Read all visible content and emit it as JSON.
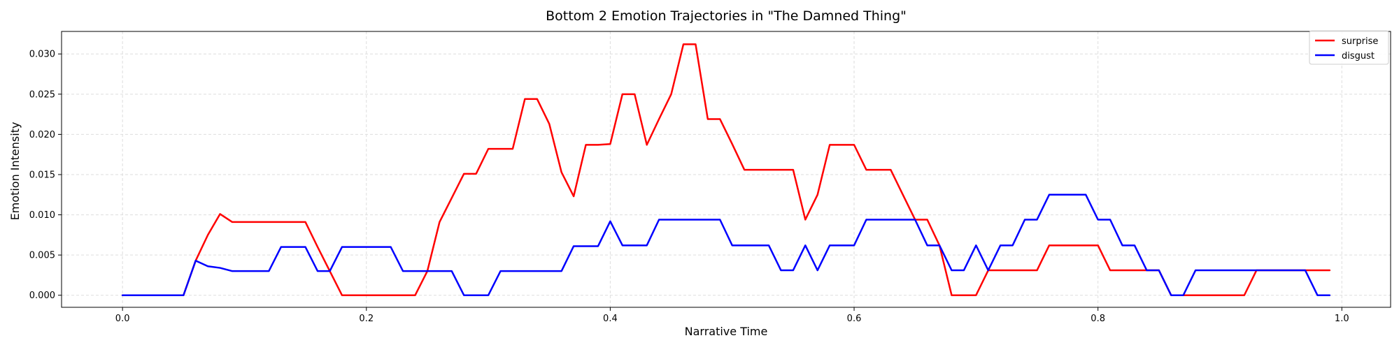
{
  "chart_data": {
    "type": "line",
    "title": "Bottom 2 Emotion Trajectories in \"The Damned Thing\"",
    "xlabel": "Narrative Time",
    "ylabel": "Emotion Intensity",
    "xlim": [
      -0.05,
      1.04
    ],
    "ylim": [
      -0.0015,
      0.0328
    ],
    "xticks": [
      0.0,
      0.2,
      0.4,
      0.6,
      0.8,
      1.0
    ],
    "xtick_labels": [
      "0.0",
      "0.2",
      "0.4",
      "0.6",
      "0.8",
      "1.0"
    ],
    "yticks": [
      0.0,
      0.005,
      0.01,
      0.015,
      0.02,
      0.025,
      0.03
    ],
    "ytick_labels": [
      "0.000",
      "0.005",
      "0.010",
      "0.015",
      "0.020",
      "0.025",
      "0.030"
    ],
    "grid": true,
    "legend_position": "top-right",
    "x": [
      0.0,
      0.01,
      0.02,
      0.03,
      0.04,
      0.05,
      0.06,
      0.07,
      0.08,
      0.09,
      0.1,
      0.11,
      0.12,
      0.13,
      0.14,
      0.15,
      0.16,
      0.17,
      0.18,
      0.19,
      0.2,
      0.21,
      0.22,
      0.23,
      0.24,
      0.25,
      0.26,
      0.27,
      0.28,
      0.29,
      0.3,
      0.31,
      0.32,
      0.33,
      0.34,
      0.35,
      0.36,
      0.37,
      0.38,
      0.39,
      0.4,
      0.41,
      0.42,
      0.43,
      0.44,
      0.45,
      0.46,
      0.47,
      0.48,
      0.49,
      0.5,
      0.51,
      0.52,
      0.53,
      0.54,
      0.55,
      0.56,
      0.57,
      0.58,
      0.59,
      0.6,
      0.61,
      0.62,
      0.63,
      0.64,
      0.65,
      0.66,
      0.67,
      0.68,
      0.69,
      0.7,
      0.71,
      0.72,
      0.73,
      0.74,
      0.75,
      0.76,
      0.77,
      0.78,
      0.79,
      0.8,
      0.81,
      0.82,
      0.83,
      0.84,
      0.85,
      0.86,
      0.87,
      0.88,
      0.89,
      0.9,
      0.91,
      0.92,
      0.93,
      0.94,
      0.95,
      0.96,
      0.97,
      0.98,
      0.99
    ],
    "series": [
      {
        "name": "surprise",
        "color": "#ff0000",
        "values": [
          0,
          0,
          0,
          0,
          0,
          0,
          0.0043,
          0.0075,
          0.0101,
          0.0091,
          0.0091,
          0.0091,
          0.0091,
          0.0091,
          0.0091,
          0.0091,
          0.006,
          0.003,
          0,
          0,
          0,
          0,
          0,
          0,
          0,
          0.003,
          0.0091,
          0.0121,
          0.0151,
          0.0151,
          0.0182,
          0.0182,
          0.0182,
          0.0244,
          0.0244,
          0.0213,
          0.0153,
          0.0123,
          0.0187,
          0.0187,
          0.0188,
          0.025,
          0.025,
          0.0187,
          0.0219,
          0.025,
          0.0312,
          0.0312,
          0.0219,
          0.0219,
          0.0188,
          0.0156,
          0.0156,
          0.0156,
          0.0156,
          0.0156,
          0.0094,
          0.0125,
          0.0187,
          0.0187,
          0.0187,
          0.0156,
          0.0156,
          0.0156,
          0.0125,
          0.0094,
          0.0094,
          0.0062,
          0,
          0,
          0,
          0.0031,
          0.0031,
          0.0031,
          0.0031,
          0.0031,
          0.0062,
          0.0062,
          0.0062,
          0.0062,
          0.0062,
          0.0031,
          0.0031,
          0.0031,
          0.0031,
          0.0031,
          0,
          0,
          0,
          0,
          0,
          0,
          0,
          0.0031,
          0.0031,
          0.0031,
          0.0031,
          0.0031,
          0.0031,
          0.0031
        ]
      },
      {
        "name": "disgust",
        "color": "#0000ff",
        "values": [
          0,
          0,
          0,
          0,
          0,
          0,
          0.0043,
          0.0036,
          0.0034,
          0.003,
          0.003,
          0.003,
          0.003,
          0.006,
          0.006,
          0.006,
          0.003,
          0.003,
          0.006,
          0.006,
          0.006,
          0.006,
          0.006,
          0.003,
          0.003,
          0.003,
          0.003,
          0.003,
          0,
          0,
          0,
          0.003,
          0.003,
          0.003,
          0.003,
          0.003,
          0.003,
          0.0061,
          0.0061,
          0.0061,
          0.0092,
          0.0062,
          0.0062,
          0.0062,
          0.0094,
          0.0094,
          0.0094,
          0.0094,
          0.0094,
          0.0094,
          0.0062,
          0.0062,
          0.0062,
          0.0062,
          0.0031,
          0.0031,
          0.0062,
          0.0031,
          0.0062,
          0.0062,
          0.0062,
          0.0094,
          0.0094,
          0.0094,
          0.0094,
          0.0094,
          0.0062,
          0.0062,
          0.0031,
          0.0031,
          0.0062,
          0.0031,
          0.0062,
          0.0062,
          0.0094,
          0.0094,
          0.0125,
          0.0125,
          0.0125,
          0.0125,
          0.0094,
          0.0094,
          0.0062,
          0.0062,
          0.0031,
          0.0031,
          0,
          0,
          0.0031,
          0.0031,
          0.0031,
          0.0031,
          0.0031,
          0.0031,
          0.0031,
          0.0031,
          0.0031,
          0.0031,
          0,
          0
        ]
      }
    ]
  }
}
